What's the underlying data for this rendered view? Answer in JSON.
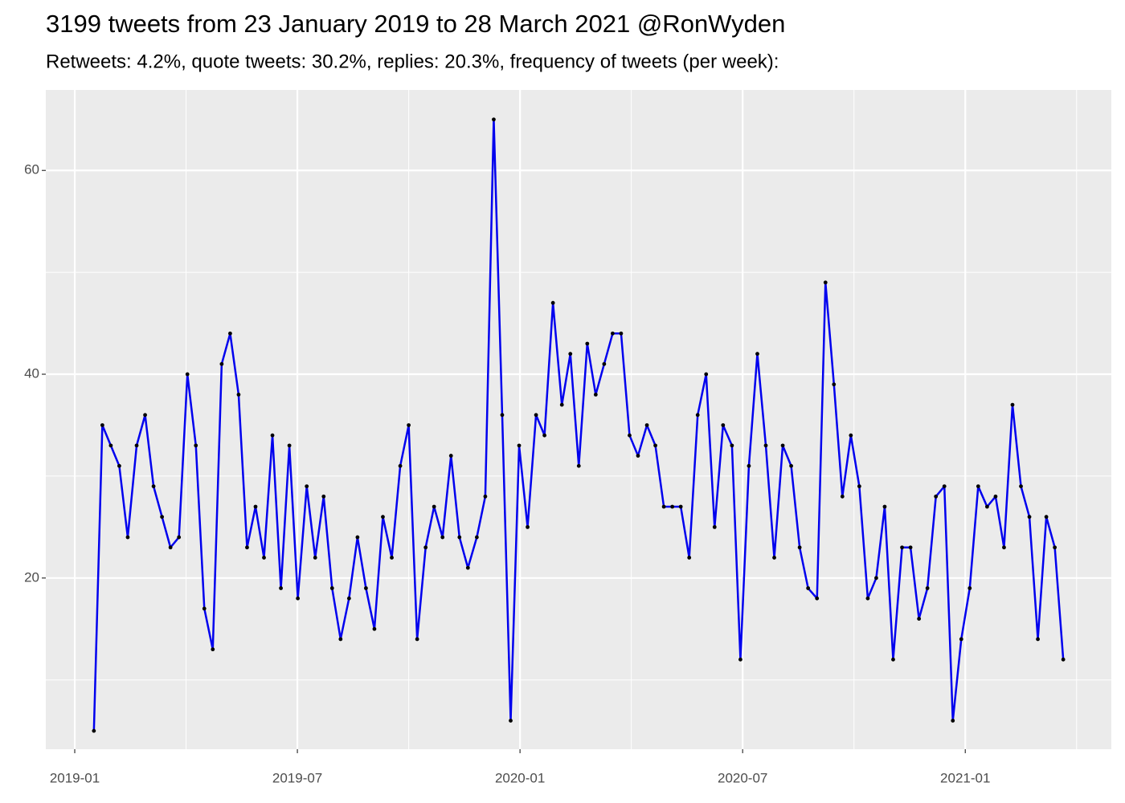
{
  "chart_data": {
    "type": "line",
    "title": "3199 tweets from 23 January 2019 to 28 March 2021 @RonWyden",
    "subtitle": "Retweets: 4.2%, quote tweets: 30.2%, replies: 20.3%, frequency of tweets (per week):",
    "x": [
      2019.043,
      2019.062,
      2019.081,
      2019.1,
      2019.119,
      2019.139,
      2019.158,
      2019.177,
      2019.196,
      2019.215,
      2019.234,
      2019.253,
      2019.272,
      2019.291,
      2019.31,
      2019.33,
      2019.349,
      2019.368,
      2019.387,
      2019.406,
      2019.425,
      2019.444,
      2019.463,
      2019.482,
      2019.501,
      2019.521,
      2019.54,
      2019.559,
      2019.578,
      2019.597,
      2019.616,
      2019.635,
      2019.654,
      2019.673,
      2019.692,
      2019.712,
      2019.731,
      2019.75,
      2019.769,
      2019.788,
      2019.807,
      2019.826,
      2019.845,
      2019.864,
      2019.883,
      2019.903,
      2019.922,
      2019.941,
      2019.96,
      2019.979,
      2019.998,
      2020.017,
      2020.036,
      2020.055,
      2020.074,
      2020.094,
      2020.113,
      2020.132,
      2020.151,
      2020.17,
      2020.189,
      2020.208,
      2020.227,
      2020.246,
      2020.265,
      2020.285,
      2020.304,
      2020.323,
      2020.342,
      2020.361,
      2020.38,
      2020.399,
      2020.418,
      2020.437,
      2020.456,
      2020.476,
      2020.495,
      2020.514,
      2020.533,
      2020.552,
      2020.571,
      2020.59,
      2020.609,
      2020.628,
      2020.647,
      2020.667,
      2020.686,
      2020.705,
      2020.724,
      2020.743,
      2020.762,
      2020.781,
      2020.8,
      2020.819,
      2020.838,
      2020.858,
      2020.877,
      2020.896,
      2020.915,
      2020.934,
      2020.953,
      2020.972,
      2020.991,
      2021.01,
      2021.029,
      2021.049,
      2021.068,
      2021.087,
      2021.106,
      2021.125,
      2021.144,
      2021.163,
      2021.182,
      2021.201,
      2021.22
    ],
    "values": [
      5,
      35,
      33,
      31,
      24,
      33,
      36,
      29,
      26,
      23,
      24,
      40,
      33,
      17,
      13,
      41,
      44,
      38,
      23,
      27,
      22,
      34,
      19,
      33,
      18,
      29,
      22,
      28,
      19,
      14,
      18,
      24,
      19,
      15,
      26,
      22,
      31,
      35,
      14,
      23,
      27,
      24,
      32,
      24,
      21,
      24,
      28,
      65,
      36,
      6,
      33,
      25,
      36,
      34,
      47,
      37,
      42,
      31,
      43,
      38,
      41,
      44,
      44,
      34,
      32,
      35,
      33,
      27,
      27,
      27,
      22,
      36,
      40,
      25,
      35,
      33,
      12,
      31,
      42,
      33,
      22,
      33,
      31,
      23,
      19,
      18,
      49,
      39,
      28,
      34,
      29,
      18,
      20,
      27,
      12,
      23,
      23,
      16,
      19,
      28,
      29,
      6,
      14,
      19,
      29,
      27,
      28,
      23,
      37,
      29,
      26,
      14,
      26,
      23,
      12
    ],
    "color": "#0000ee",
    "point_color": "#000000",
    "xlim": [
      2018.935,
      2021.328
    ],
    "xticks": [
      {
        "value": 2019.0,
        "label": "2019-01"
      },
      {
        "value": 2019.5,
        "label": "2019-07"
      },
      {
        "value": 2020.0,
        "label": "2020-01"
      },
      {
        "value": 2020.5,
        "label": "2020-07"
      },
      {
        "value": 2021.0,
        "label": "2021-01"
      }
    ],
    "x_minor_ticks": [
      2019.25,
      2019.75,
      2020.25,
      2020.75,
      2021.25
    ],
    "ylim": [
      3.2,
      67.9
    ],
    "yticks": [
      20,
      40,
      60
    ],
    "y_minor_ticks": [
      10,
      30,
      50
    ],
    "grid": true
  }
}
